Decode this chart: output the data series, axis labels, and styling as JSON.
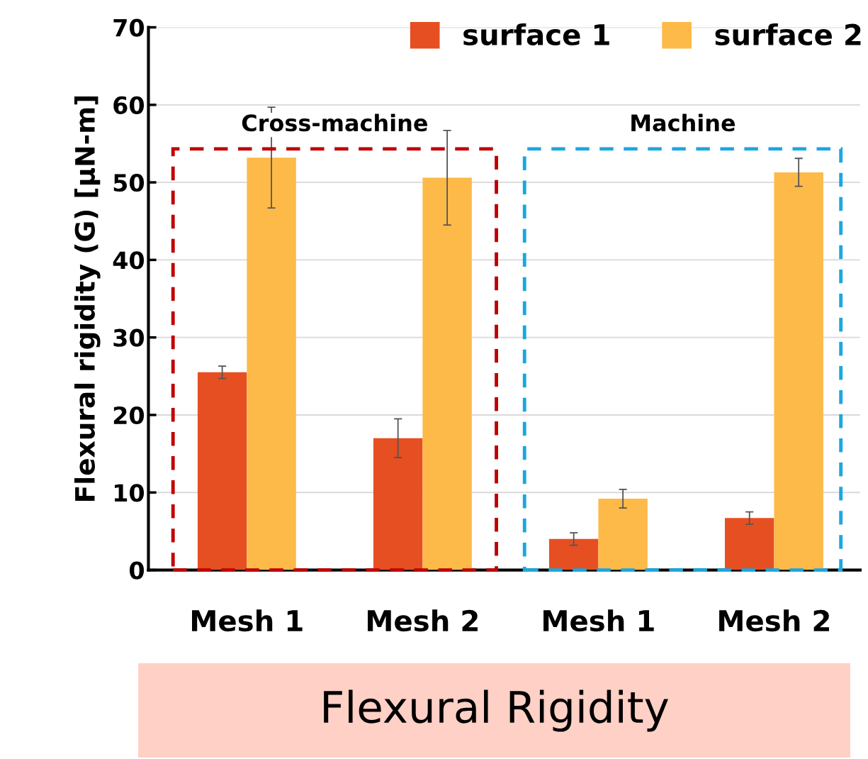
{
  "chart_data": {
    "type": "bar",
    "xlabel": "Flexural Rigidity",
    "ylabel": "Flexural rigidity (G) [µN-m]",
    "categories": [
      "Mesh 1",
      "Mesh 2",
      "Mesh 1",
      "Mesh 2"
    ],
    "series": [
      {
        "name": "surface 1",
        "color": "#e64f22",
        "values": [
          25.5,
          17.0,
          4.0,
          6.7
        ],
        "errors": [
          0.8,
          2.5,
          0.8,
          0.8
        ]
      },
      {
        "name": "surface 2",
        "color": "#fdba48",
        "values": [
          53.2,
          50.6,
          9.2,
          51.3
        ],
        "errors": [
          6.5,
          6.1,
          1.2,
          1.8
        ]
      }
    ],
    "ylim": [
      0,
      70
    ],
    "yticks": [
      0,
      10,
      20,
      30,
      40,
      50,
      60,
      70
    ],
    "grid": "y",
    "legend": "top right",
    "annotations": [
      "Cross-machine",
      "Machine"
    ]
  }
}
